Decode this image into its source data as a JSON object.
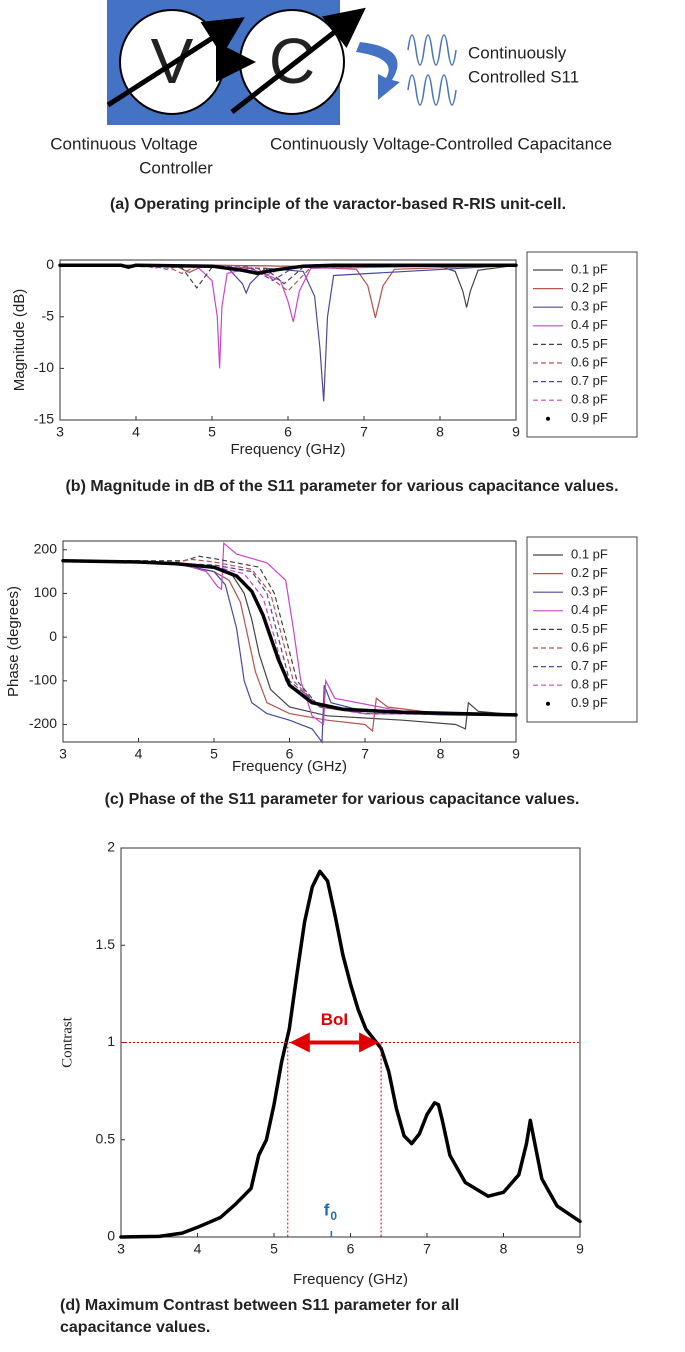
{
  "diagram": {
    "nodes": [
      {
        "label": "V"
      },
      {
        "label": "C"
      }
    ],
    "labels": [
      "Continuous Voltage",
      "Controller",
      "Continuously Voltage-Controlled Capacitance",
      "Continuously",
      "Controlled S11"
    ],
    "caption": "(a) Operating principle of the varactor-based R-RIS unit-cell."
  },
  "chart_data": [
    {
      "type": "line",
      "caption": "(b) Magnitude in dB of the S11 parameter for various capacitance values.",
      "x_label": "Frequency (GHz)",
      "y_label": "Magnitude (dB)",
      "xlim": [
        3,
        9
      ],
      "xticks": [
        3,
        4,
        5,
        6,
        7,
        8,
        9
      ],
      "ylim": [
        -15,
        0.5
      ],
      "yticks": [
        0,
        -5,
        -10,
        -15
      ],
      "legend": "right",
      "series": [
        {
          "name": "0.1 pF",
          "color": "#444444",
          "style": "solid",
          "x": [
            3,
            4,
            5,
            6,
            7,
            8,
            8.2,
            8.3,
            8.35,
            8.4,
            8.5,
            9
          ],
          "values": [
            0,
            0,
            0,
            -0.1,
            0,
            -0.1,
            -0.6,
            -2.5,
            -4.1,
            -2.5,
            -0.5,
            0
          ]
        },
        {
          "name": "0.2 pF",
          "color": "#b8524e",
          "style": "solid",
          "x": [
            3,
            4.5,
            4.7,
            4.9,
            6,
            6.9,
            7.05,
            7.15,
            7.25,
            7.4,
            9
          ],
          "values": [
            0,
            0,
            -0.7,
            0,
            -0.1,
            -0.4,
            -2,
            -5.1,
            -2,
            -0.4,
            0
          ]
        },
        {
          "name": "0.3 pF",
          "color": "#4a4a9e",
          "style": "solid",
          "x": [
            3,
            5.2,
            5.4,
            5.45,
            5.5,
            5.7,
            6.2,
            6.35,
            6.42,
            6.47,
            6.52,
            6.6,
            9
          ],
          "values": [
            0,
            -0.2,
            -1.8,
            -2.7,
            -1.8,
            -0.3,
            -0.6,
            -3,
            -8,
            -13.2,
            -5,
            -1,
            0
          ]
        },
        {
          "name": "0.4 pF",
          "color": "#cc44cc",
          "style": "solid",
          "x": [
            3,
            4.8,
            5.0,
            5.07,
            5.1,
            5.13,
            5.2,
            5.5,
            5.9,
            6.0,
            6.07,
            6.15,
            6.3,
            9
          ],
          "values": [
            0,
            -0.1,
            -1.5,
            -5,
            -10,
            -4,
            -0.8,
            -0.3,
            -1.5,
            -3.5,
            -5.5,
            -2.5,
            -0.3,
            0
          ]
        },
        {
          "name": "0.5 pF",
          "color": "#444444",
          "style": "dashed",
          "x": [
            3,
            4.6,
            4.8,
            5.0,
            5.7,
            5.95,
            6.2,
            9
          ],
          "values": [
            0,
            -0.2,
            -2.2,
            -0.2,
            -0.3,
            -1.8,
            -0.2,
            0
          ]
        },
        {
          "name": "0.6 pF",
          "color": "#b8524e",
          "style": "dashed",
          "x": [
            3,
            4.4,
            4.6,
            4.8,
            5.6,
            6.0,
            6.3,
            9
          ],
          "values": [
            0,
            -0.1,
            -0.8,
            -0.1,
            -0.3,
            -2.5,
            -0.2,
            0
          ]
        },
        {
          "name": "0.7 pF",
          "color": "#4a4a9e",
          "style": "dashed",
          "x": [
            3,
            4.2,
            4.4,
            4.6,
            5.5,
            5.8,
            6.1,
            9
          ],
          "values": [
            0,
            0,
            -0.4,
            0,
            -0.2,
            -1.5,
            -0.1,
            0
          ]
        },
        {
          "name": "0.8 pF",
          "color": "#cc44cc",
          "style": "dashed",
          "x": [
            3,
            4.1,
            4.25,
            4.4,
            5.4,
            5.7,
            6.0,
            9
          ],
          "values": [
            0,
            0,
            -0.3,
            0,
            -0.2,
            -1,
            -0.1,
            0
          ]
        },
        {
          "name": "0.9 pF",
          "color": "#000000",
          "style": "dots",
          "x": [
            3,
            3.8,
            3.9,
            4.0,
            5.0,
            5.4,
            5.6,
            5.8,
            6.2,
            6.6,
            9
          ],
          "values": [
            0,
            0,
            -0.2,
            0,
            -0.1,
            -0.5,
            -0.8,
            -0.5,
            -0.1,
            0,
            0
          ]
        }
      ]
    },
    {
      "type": "line",
      "caption": "(c) Phase of the S11 parameter for various capacitance values.",
      "x_label": "Frequency (GHz)",
      "y_label": "Phase (degrees)",
      "xlim": [
        3,
        9
      ],
      "xticks": [
        3,
        4,
        5,
        6,
        7,
        8,
        9
      ],
      "ylim": [
        -240,
        220
      ],
      "yticks": [
        200,
        100,
        0,
        -100,
        -200
      ],
      "legend": "right",
      "series": [
        {
          "name": "0.1 pF",
          "color": "#444444",
          "style": "solid",
          "x": [
            3,
            4.5,
            5,
            5.25,
            5.4,
            5.5,
            5.6,
            5.75,
            6,
            6.5,
            7.5,
            8.2,
            8.33,
            8.37,
            8.5,
            9
          ],
          "values": [
            175,
            168,
            158,
            140,
            100,
            40,
            -40,
            -120,
            -160,
            -180,
            -190,
            -200,
            -210,
            -150,
            -170,
            -178
          ]
        },
        {
          "name": "0.2 pF",
          "color": "#b8524e",
          "style": "solid",
          "x": [
            3,
            4.5,
            4.7,
            5,
            5.2,
            5.35,
            5.45,
            5.55,
            5.7,
            6,
            6.5,
            7,
            7.1,
            7.15,
            7.3,
            8,
            9
          ],
          "values": [
            175,
            168,
            160,
            150,
            130,
            80,
            0,
            -80,
            -150,
            -175,
            -190,
            -200,
            -215,
            -140,
            -160,
            -175,
            -180
          ]
        },
        {
          "name": "0.3 pF",
          "color": "#4a4a9e",
          "style": "solid",
          "x": [
            3,
            4.5,
            5,
            5.15,
            5.3,
            5.4,
            5.5,
            5.7,
            6,
            6.3,
            6.43,
            6.46,
            6.55,
            7,
            8,
            9
          ],
          "values": [
            175,
            168,
            150,
            120,
            20,
            -100,
            -150,
            -175,
            -190,
            -210,
            -240,
            -110,
            -150,
            -170,
            -178,
            -180
          ]
        },
        {
          "name": "0.4 pF",
          "color": "#cc44cc",
          "style": "solid",
          "x": [
            3,
            4.5,
            4.9,
            5.05,
            5.1,
            5.13,
            5.3,
            5.7,
            5.95,
            6.05,
            6.15,
            6.3,
            6.45,
            6.48,
            6.6,
            7.5,
            9
          ],
          "values": [
            175,
            170,
            150,
            115,
            110,
            215,
            190,
            170,
            130,
            20,
            -100,
            -180,
            -200,
            -100,
            -140,
            -170,
            -178
          ]
        },
        {
          "name": "0.5 pF",
          "color": "#444444",
          "style": "dashed",
          "x": [
            3,
            4.6,
            4.8,
            5,
            5.6,
            5.8,
            5.95,
            6.1,
            6.4,
            7,
            9
          ],
          "values": [
            175,
            175,
            185,
            180,
            160,
            100,
            0,
            -100,
            -160,
            -175,
            -178
          ]
        },
        {
          "name": "0.6 pF",
          "color": "#b8524e",
          "style": "dashed",
          "x": [
            3,
            4.5,
            4.7,
            5,
            5.5,
            5.75,
            5.9,
            6.05,
            6.4,
            7,
            9
          ],
          "values": [
            175,
            172,
            178,
            172,
            155,
            100,
            0,
            -100,
            -160,
            -175,
            -178
          ]
        },
        {
          "name": "0.7 pF",
          "color": "#4a4a9e",
          "style": "dashed",
          "x": [
            3,
            4.4,
            4.6,
            5,
            5.5,
            5.7,
            5.85,
            6,
            6.4,
            7,
            9
          ],
          "values": [
            175,
            172,
            168,
            165,
            150,
            100,
            0,
            -100,
            -158,
            -175,
            -178
          ]
        },
        {
          "name": "0.8 pF",
          "color": "#cc44cc",
          "style": "dashed",
          "x": [
            3,
            4.3,
            4.5,
            5,
            5.4,
            5.65,
            5.8,
            5.95,
            6.4,
            7,
            9
          ],
          "values": [
            175,
            172,
            166,
            162,
            145,
            90,
            0,
            -100,
            -158,
            -175,
            -178
          ]
        },
        {
          "name": "0.9 pF",
          "color": "#000000",
          "style": "dots",
          "x": [
            3,
            4,
            4.5,
            5,
            5.3,
            5.5,
            5.65,
            5.75,
            5.85,
            6,
            6.3,
            6.7,
            7.5,
            9
          ],
          "values": [
            175,
            172,
            168,
            160,
            140,
            105,
            50,
            0,
            -50,
            -110,
            -150,
            -165,
            -172,
            -178
          ]
        }
      ]
    },
    {
      "type": "line",
      "caption": [
        "(d) Maximum Contrast between S11 parameter for all",
        "capacitance values."
      ],
      "x_label": "Frequency (GHz)",
      "y_label": "Contrast",
      "xlim": [
        3,
        9
      ],
      "xticks": [
        3,
        4,
        5,
        6,
        7,
        8,
        9
      ],
      "ylim": [
        0,
        2
      ],
      "yticks": [
        0,
        0.5,
        1,
        1.5,
        2
      ],
      "color": "#000000",
      "style": "dots",
      "x": [
        3,
        3.5,
        3.8,
        4,
        4.3,
        4.5,
        4.6,
        4.7,
        4.8,
        4.9,
        5.0,
        5.1,
        5.2,
        5.3,
        5.4,
        5.5,
        5.6,
        5.7,
        5.8,
        5.9,
        6.0,
        6.1,
        6.2,
        6.3,
        6.4,
        6.5,
        6.6,
        6.7,
        6.8,
        6.9,
        7.0,
        7.1,
        7.15,
        7.2,
        7.3,
        7.5,
        7.8,
        8.0,
        8.2,
        8.3,
        8.35,
        8.4,
        8.5,
        8.7,
        9
      ],
      "values": [
        0,
        0.003,
        0.02,
        0.05,
        0.1,
        0.17,
        0.21,
        0.25,
        0.42,
        0.5,
        0.68,
        0.9,
        1.07,
        1.35,
        1.62,
        1.8,
        1.88,
        1.83,
        1.65,
        1.45,
        1.3,
        1.17,
        1.07,
        1.02,
        0.97,
        0.85,
        0.66,
        0.52,
        0.48,
        0.53,
        0.63,
        0.69,
        0.68,
        0.6,
        0.42,
        0.28,
        0.21,
        0.23,
        0.32,
        0.48,
        0.6,
        0.5,
        0.3,
        0.16,
        0.08
      ],
      "threshold": 1,
      "threshold_color": "#e00000",
      "band": [
        5.18,
        6.4
      ],
      "band_label": "BoI",
      "marker": {
        "text": "f",
        "subscript": "0",
        "x": 5.75,
        "color": "#1a6fb0"
      }
    }
  ]
}
